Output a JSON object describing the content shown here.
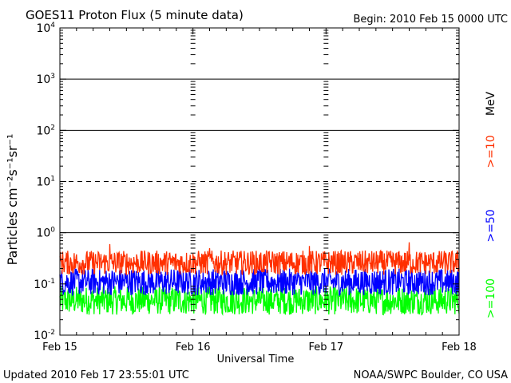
{
  "chart_data": {
    "type": "line",
    "title": "GOES11 Proton Flux (5 minute data)",
    "begin_label": "Begin: 2010 Feb 15 0000 UTC",
    "updated_label": "Updated 2010 Feb 17 23:55:01 UTC",
    "credit_label": "NOAA/SWPC Boulder, CO USA",
    "xlabel": "Universal Time",
    "ylabel": "Particles cm⁻²s⁻¹sr⁻¹",
    "y_scale": "log",
    "ylim": [
      0.01,
      10000
    ],
    "y_ticks": [
      {
        "value": 0.01,
        "base": "10",
        "exp": "-2"
      },
      {
        "value": 0.1,
        "base": "10",
        "exp": "-1"
      },
      {
        "value": 1,
        "base": "10",
        "exp": "0"
      },
      {
        "value": 10,
        "base": "10",
        "exp": "1"
      },
      {
        "value": 100,
        "base": "10",
        "exp": "2"
      },
      {
        "value": 1000,
        "base": "10",
        "exp": "3"
      },
      {
        "value": 10000,
        "base": "10",
        "exp": "4"
      }
    ],
    "x_unit": "day",
    "xlim": [
      0,
      3
    ],
    "x_ticks": [
      {
        "value": 0,
        "label": "Feb 15"
      },
      {
        "value": 1,
        "label": "Feb 16"
      },
      {
        "value": 2,
        "label": "Feb 17"
      },
      {
        "value": 3,
        "label": "Feb 18"
      }
    ],
    "hlines": [
      {
        "value": 10,
        "style": "dashed"
      },
      {
        "value": 1,
        "style": "solid"
      },
      {
        "value": 100,
        "style": "solid"
      },
      {
        "value": 1000,
        "style": "solid"
      }
    ],
    "legend_unit": "MeV",
    "series": [
      {
        "name": ">=10",
        "color": "#ff3000",
        "level_range": [
          0.15,
          0.45
        ],
        "spikes": [
          0.6,
          0.5,
          0.55,
          0.65
        ]
      },
      {
        "name": ">=50",
        "color": "#0000ff",
        "level_range": [
          0.06,
          0.2
        ],
        "spikes": [
          0.25
        ]
      },
      {
        "name": ">=100",
        "color": "#00ff00",
        "level_range": [
          0.025,
          0.09
        ],
        "spikes": []
      }
    ]
  }
}
